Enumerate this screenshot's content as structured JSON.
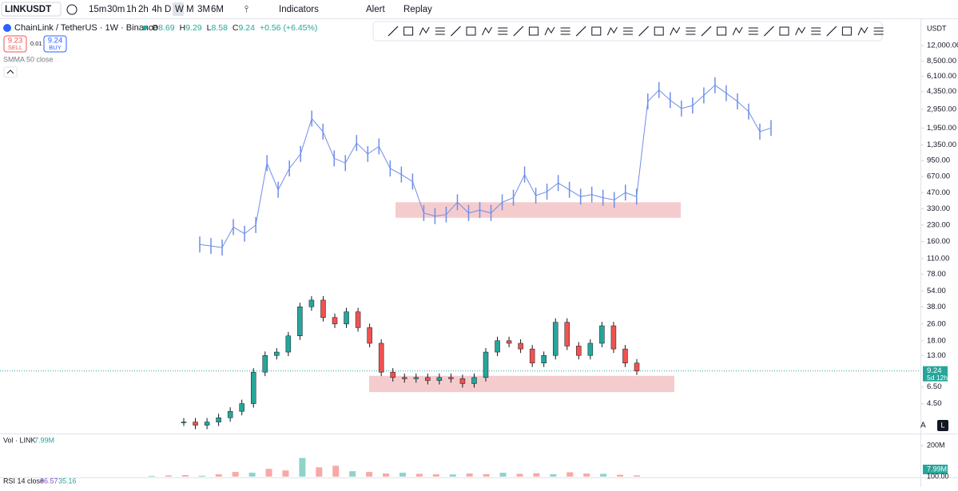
{
  "toolbar": {
    "symbol": "LINKUSDT",
    "intervals": [
      "15m",
      "30m",
      "1h",
      "2h",
      "4h",
      "D",
      "W",
      "M",
      "3M",
      "6M"
    ],
    "selected_interval": "W",
    "indicators": "Indicators",
    "alert": "Alert",
    "replay": "Replay"
  },
  "legend": {
    "title": "ChainLink / TetherUS · 1W · Binance",
    "ohlc": [
      {
        "label": "O",
        "value": "8.69"
      },
      {
        "label": "H",
        "value": "9.29"
      },
      {
        "label": "L",
        "value": "8.58"
      },
      {
        "label": "C",
        "value": "9.24"
      }
    ],
    "change": "+0.56 (+6.45%)",
    "sell": {
      "price": "9.23",
      "label": "SELL"
    },
    "spread": "0.01",
    "buy": {
      "price": "9.24",
      "label": "BUY"
    },
    "indicator": "SMMA 50 close"
  },
  "price_axis": {
    "currency": "USDT",
    "scale": "log",
    "ylim": [
      2.33,
      20700
    ],
    "ticks": [
      {
        "value": 12000,
        "label": "12,000.00"
      },
      {
        "value": 8500,
        "label": "8,500.00"
      },
      {
        "value": 6100,
        "label": "6,100.00"
      },
      {
        "value": 4350,
        "label": "4,350.00"
      },
      {
        "value": 2950,
        "label": "2,950.00"
      },
      {
        "value": 1950,
        "label": "1,950.00"
      },
      {
        "value": 1350,
        "label": "1,350.00"
      },
      {
        "value": 950,
        "label": "950.00"
      },
      {
        "value": 670,
        "label": "670.00"
      },
      {
        "value": 470,
        "label": "470.00"
      },
      {
        "value": 330,
        "label": "330.00"
      },
      {
        "value": 230,
        "label": "230.00"
      },
      {
        "value": 160,
        "label": "160.00"
      },
      {
        "value": 110,
        "label": "110.00"
      },
      {
        "value": 78,
        "label": "78.00"
      },
      {
        "value": 54,
        "label": "54.00"
      },
      {
        "value": 38,
        "label": "38.00"
      },
      {
        "value": 26,
        "label": "26.00"
      },
      {
        "value": 18,
        "label": "18.00"
      },
      {
        "value": 13,
        "label": "13.00"
      },
      {
        "value": 6.5,
        "label": "6.50"
      },
      {
        "value": 4.5,
        "label": "4.50"
      }
    ],
    "last_price": 9.24,
    "countdown": "5d 12h",
    "auto": "A",
    "log": "L"
  },
  "overlay_series": {
    "color": "#6f8ee8",
    "values": [
      150,
      145,
      140,
      220,
      190,
      230,
      900,
      500,
      800,
      1100,
      2400,
      1800,
      1000,
      900,
      1400,
      1100,
      1300,
      800,
      700,
      600,
      300,
      280,
      290,
      380,
      300,
      320,
      300,
      380,
      420,
      700,
      440,
      480,
      580,
      500,
      430,
      450,
      420,
      400,
      470,
      430,
      3500,
      4500,
      3600,
      3000,
      3200,
      4000,
      5000,
      4200,
      3500,
      2800,
      1800,
      1950
    ]
  },
  "link_series": {
    "up_color": "#26a69a",
    "down_color": "#ef5350",
    "values": [
      3,
      2.8,
      3,
      3.3,
      3.8,
      4.5,
      9,
      13,
      14,
      20,
      38,
      44,
      30,
      26,
      34,
      24,
      17,
      9,
      8,
      7.8,
      8,
      7.5,
      8,
      7.8,
      7,
      8,
      14,
      18,
      17,
      15,
      11,
      13,
      27,
      16,
      13,
      17,
      25,
      15,
      11,
      9.24
    ]
  },
  "zones": [
    {
      "low": 270,
      "high": 380,
      "color": "#f4c7c9"
    },
    {
      "low": 5.8,
      "high": 8.3,
      "color": "#f4c7c9"
    }
  ],
  "volume": {
    "title": "Vol · LINK",
    "current": "7.99M",
    "ylim": [
      0,
      267000000
    ],
    "ticks": [
      {
        "value": 200000000,
        "label": "200M"
      }
    ],
    "values": [
      5000000,
      8000000,
      10000000,
      6000000,
      15000000,
      30000000,
      25000000,
      50000000,
      40000000,
      120000000,
      60000000,
      70000000,
      35000000,
      30000000,
      20000000,
      25000000,
      18000000,
      15000000,
      14000000,
      20000000,
      16000000,
      25000000,
      18000000,
      22000000,
      15000000,
      28000000,
      20000000,
      18000000,
      12000000,
      7990000
    ]
  },
  "rsi": {
    "title": "RSI 14 close",
    "value": "36.57",
    "signal": "35.16",
    "top_tick": "100.00"
  }
}
